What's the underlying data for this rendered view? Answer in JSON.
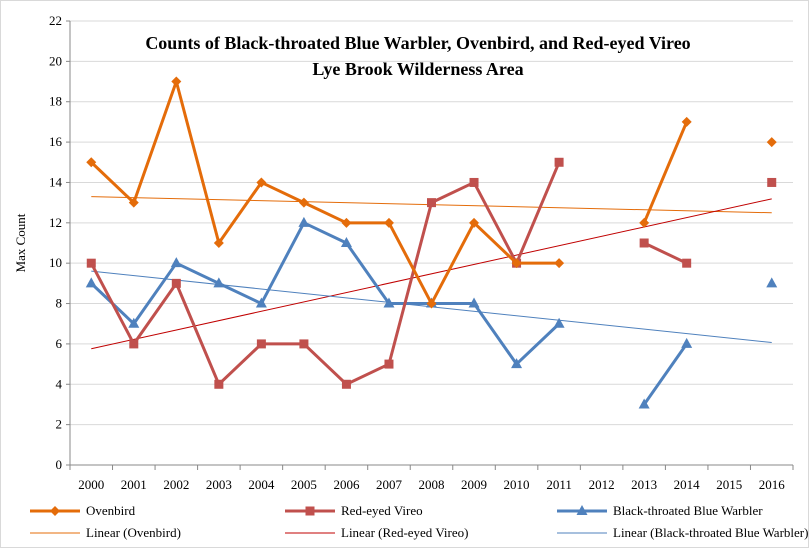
{
  "chart_data": {
    "type": "line",
    "title_line1": "Counts of Black-throated Blue Warbler, Ovenbird, and Red-eyed Vireo",
    "title_line2": "Lye Brook Wilderness Area",
    "ylabel": "Max Count",
    "xlabel": "",
    "ylim": [
      0,
      22
    ],
    "yticks": [
      0,
      2,
      4,
      6,
      8,
      10,
      12,
      14,
      16,
      18,
      20,
      22
    ],
    "categories": [
      "2000",
      "2001",
      "2002",
      "2003",
      "2004",
      "2005",
      "2006",
      "2007",
      "2008",
      "2009",
      "2010",
      "2011",
      "2012",
      "2013",
      "2014",
      "2015",
      "2016"
    ],
    "grid": "horizontal",
    "legend_position": "bottom",
    "series": [
      {
        "name": "Ovenbird",
        "color": "#E46C0A",
        "marker": "diamond",
        "values": [
          15,
          13,
          19,
          11,
          14,
          13,
          12,
          12,
          8,
          12,
          10,
          10,
          null,
          12,
          17,
          null,
          16
        ]
      },
      {
        "name": "Red-eyed Vireo",
        "color": "#C0504D",
        "marker": "square",
        "values": [
          10,
          6,
          9,
          4,
          6,
          6,
          4,
          5,
          13,
          14,
          10,
          15,
          null,
          11,
          10,
          null,
          14
        ]
      },
      {
        "name": "Black-throated Blue Warbler",
        "color": "#4F81BD",
        "marker": "triangle",
        "values": [
          9,
          7,
          10,
          9,
          8,
          12,
          11,
          8,
          8,
          8,
          5,
          7,
          null,
          3,
          6,
          null,
          9
        ]
      }
    ],
    "trendlines": [
      {
        "name": "Linear (Ovenbird)",
        "color": "#E46C0A",
        "series": 0
      },
      {
        "name": "Linear (Red-eyed Vireo)",
        "color": "#C00000",
        "series": 1
      },
      {
        "name": "Linear (Black-throated Blue Warbler)",
        "color": "#4F81BD",
        "series": 2
      }
    ]
  }
}
